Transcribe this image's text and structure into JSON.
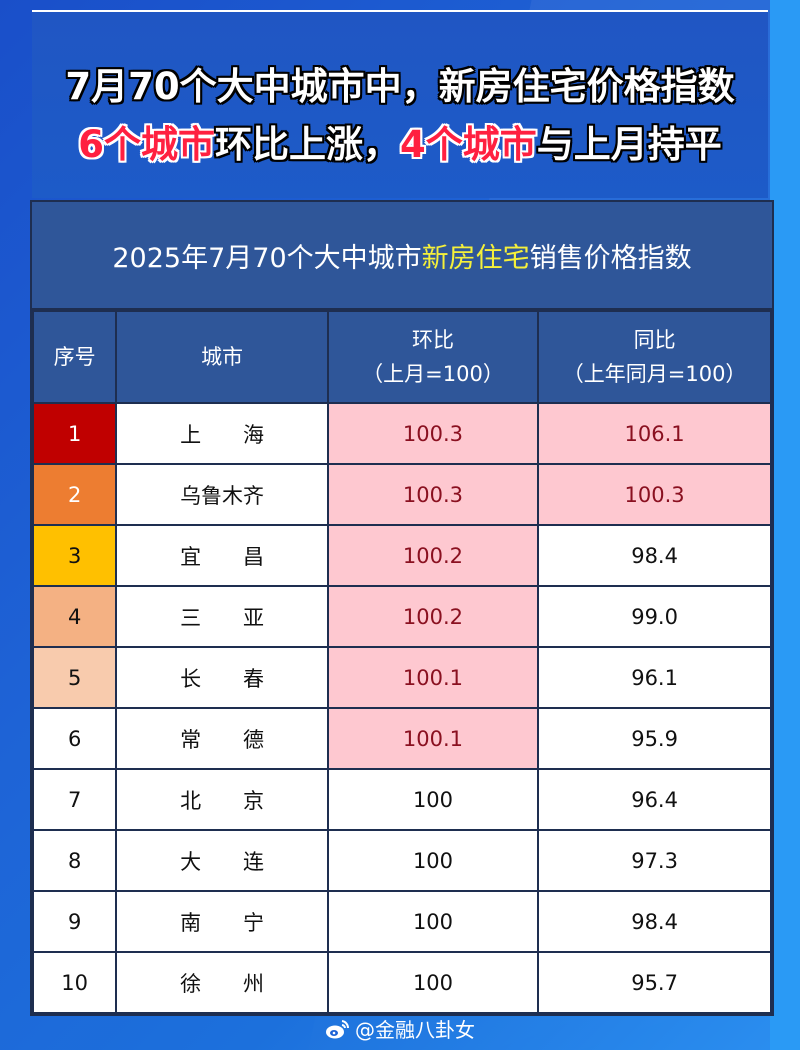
{
  "headline": {
    "line1": "7月70个大中城市中，新房住宅价格指数",
    "line2_parts": [
      {
        "text": "6个城市",
        "highlight": true
      },
      {
        "text": "环比上涨，",
        "highlight": false
      },
      {
        "text": "4个城市",
        "highlight": true
      },
      {
        "text": "与上月持平",
        "highlight": false
      }
    ]
  },
  "table": {
    "title_prefix": "2025年7月70个大中城市",
    "title_highlight": "新房住宅",
    "title_suffix": "销售价格指数",
    "headers": {
      "rank": "序号",
      "city": "城市",
      "mom_line1": "环比",
      "mom_line2": "（上月=100）",
      "yoy_line1": "同比",
      "yoy_line2": "（上年同月=100）"
    },
    "rows": [
      {
        "rank": "1",
        "city": "上　　海",
        "mom": "100.3",
        "yoy": "106.1"
      },
      {
        "rank": "2",
        "city": "乌鲁木齐",
        "mom": "100.3",
        "yoy": "100.3"
      },
      {
        "rank": "3",
        "city": "宜　　昌",
        "mom": "100.2",
        "yoy": "98.4"
      },
      {
        "rank": "4",
        "city": "三　　亚",
        "mom": "100.2",
        "yoy": "99.0"
      },
      {
        "rank": "5",
        "city": "长　　春",
        "mom": "100.1",
        "yoy": "96.1"
      },
      {
        "rank": "6",
        "city": "常　　德",
        "mom": "100.1",
        "yoy": "95.9"
      },
      {
        "rank": "7",
        "city": "北　　京",
        "mom": "100",
        "yoy": "96.4"
      },
      {
        "rank": "8",
        "city": "大　　连",
        "mom": "100",
        "yoy": "97.3"
      },
      {
        "rank": "9",
        "city": "南　　宁",
        "mom": "100",
        "yoy": "98.4"
      },
      {
        "rank": "10",
        "city": "徐　　州",
        "mom": "100",
        "yoy": "95.7"
      }
    ]
  },
  "colors": {
    "rank_1": "#c00000",
    "rank_2": "#ed7d31",
    "rank_3": "#ffc000",
    "rank_4": "#f4b183",
    "rank_5": "#f8cbad",
    "highlight_pink": "#fec8d0",
    "header_blue": "#2f5699",
    "title_yellow": "#f5f03a"
  },
  "footer": {
    "handle": "@金融八卦女"
  },
  "chart_data": {
    "type": "table",
    "title": "2025年7月70个大中城市新房住宅销售价格指数",
    "columns": [
      "序号",
      "城市",
      "环比（上月=100）",
      "同比（上年同月=100）"
    ],
    "rows": [
      [
        1,
        "上海",
        100.3,
        106.1
      ],
      [
        2,
        "乌鲁木齐",
        100.3,
        100.3
      ],
      [
        3,
        "宜昌",
        100.2,
        98.4
      ],
      [
        4,
        "三亚",
        100.2,
        99.0
      ],
      [
        5,
        "长春",
        100.1,
        96.1
      ],
      [
        6,
        "常德",
        100.1,
        95.9
      ],
      [
        7,
        "北京",
        100,
        96.4
      ],
      [
        8,
        "大连",
        100,
        97.3
      ],
      [
        9,
        "南宁",
        100,
        98.4
      ],
      [
        10,
        "徐州",
        100,
        95.7
      ]
    ]
  }
}
